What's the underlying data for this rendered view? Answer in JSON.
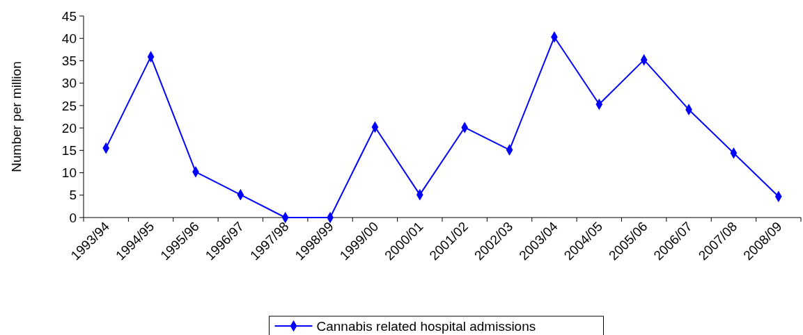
{
  "chart_data": {
    "type": "line",
    "ylabel": "Number per million",
    "categories": [
      "1993/94",
      "1994/95",
      "1995/96",
      "1996/97",
      "1997/98",
      "1998/99",
      "1999/00",
      "2000/01",
      "2001/02",
      "2002/03",
      "2003/04",
      "2004/05",
      "2005/06",
      "2006/07",
      "2007/08",
      "2008/09"
    ],
    "series": [
      {
        "name": "Cannabis related hospital admissions",
        "color": "#0000ff",
        "values": [
          15.5,
          35.9,
          10.2,
          5.1,
          0,
          0,
          20.2,
          5.1,
          20.1,
          15.1,
          40.3,
          25.3,
          35.2,
          24.1,
          14.4,
          4.7
        ]
      }
    ],
    "ylim": [
      0,
      45
    ],
    "yticks": [
      0,
      5,
      10,
      15,
      20,
      25,
      30,
      35,
      40,
      45
    ],
    "grid": false,
    "legend": "bottom",
    "marker": "diamond",
    "line_style": "solid"
  }
}
